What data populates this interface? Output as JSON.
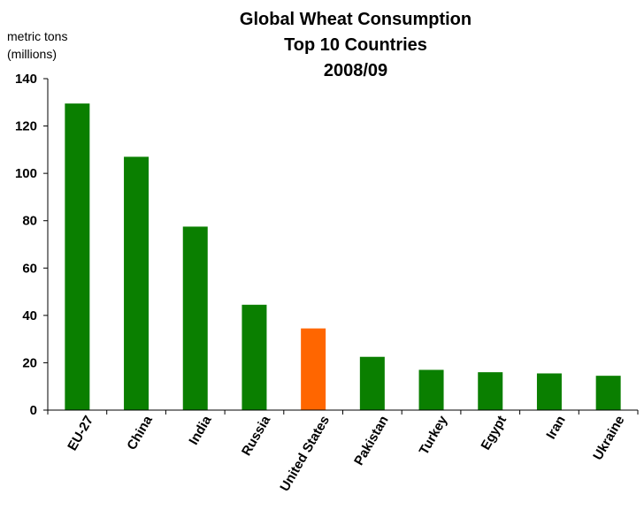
{
  "chart_data": {
    "type": "bar",
    "title_lines": [
      "Global Wheat Consumption",
      "Top 10 Countries",
      "2008/09"
    ],
    "ylabel_lines": [
      "metric tons",
      "(millions)"
    ],
    "xlabel": "",
    "categories": [
      "EU-27",
      "China",
      "India",
      "Russia",
      "United States",
      "Pakistan",
      "Turkey",
      "Egypt",
      "Iran",
      "Ukraine"
    ],
    "values": [
      129.5,
      107,
      77.5,
      44.5,
      34.5,
      22.5,
      17,
      16,
      15.5,
      14.5
    ],
    "ylim": [
      0,
      140
    ],
    "yticks": [
      0,
      20,
      40,
      60,
      80,
      100,
      120,
      140
    ],
    "grid": false,
    "legend": "none",
    "colors": {
      "default": "#0a7f00",
      "highlight": "#ff6600",
      "highlight_category": "United States"
    }
  }
}
